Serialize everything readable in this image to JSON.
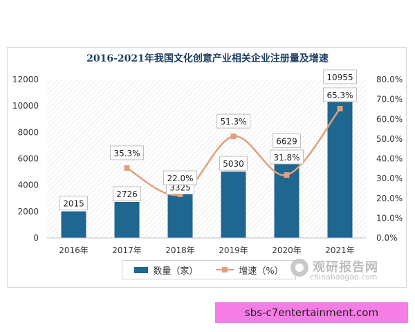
{
  "watermark": {
    "name": "观研报告网",
    "url": "chinabaogao.com"
  },
  "banner": "sbs-c7entertainment.com",
  "colors": {
    "bar": "#1f6690",
    "line": "#e0a07a",
    "title": "#1f3f63"
  },
  "chart_data": {
    "type": "bar",
    "title": "2016-2021年我国文化创意产业相关企业注册量及增速",
    "categories": [
      "2016年",
      "2017年",
      "2018年",
      "2019年",
      "2020年",
      "2021年"
    ],
    "series": [
      {
        "name": "数量（家）",
        "type": "bar",
        "axis": "left",
        "values": [
          2015,
          2726,
          3325,
          5030,
          6629,
          10955
        ],
        "labels": [
          "2015",
          "2726",
          "3325",
          "5030",
          "6629",
          "10955"
        ]
      },
      {
        "name": "增速（%）",
        "type": "line",
        "axis": "right",
        "values": [
          null,
          35.3,
          22.0,
          51.3,
          31.8,
          65.3
        ],
        "labels": [
          "",
          "35.3%",
          "22.0%",
          "51.3%",
          "31.8%",
          "65.3%"
        ]
      }
    ],
    "y_left": {
      "min": 0,
      "max": 12000,
      "ticks": [
        "0",
        "2000",
        "4000",
        "6000",
        "8000",
        "10000",
        "12000"
      ]
    },
    "y_right": {
      "min": 0,
      "max": 80,
      "ticks": [
        "0.0%",
        "10.0%",
        "20.0%",
        "30.0%",
        "40.0%",
        "50.0%",
        "60.0%",
        "70.0%",
        "80.0%"
      ]
    },
    "legend_position": "bottom",
    "grid": false,
    "plot_background": "hatched"
  }
}
